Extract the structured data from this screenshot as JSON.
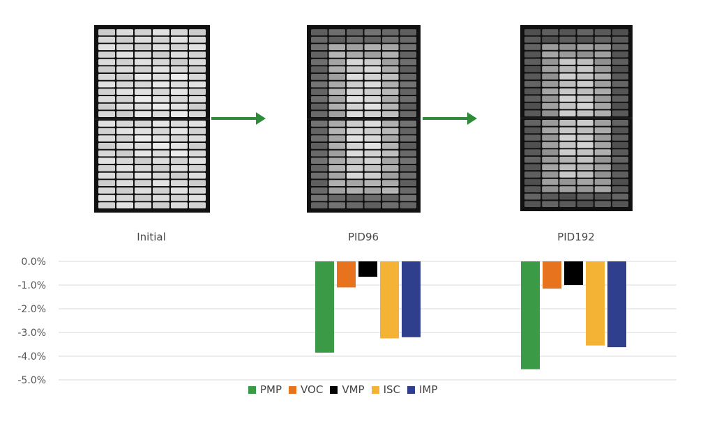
{
  "panels": [
    {
      "label": "Initial",
      "degradation": 0
    },
    {
      "label": "PID96",
      "degradation": 1
    },
    {
      "label": "PID192",
      "degradation": 2
    }
  ],
  "chart_data": {
    "type": "bar",
    "categories": [
      "Initial",
      "PID96",
      "PID192"
    ],
    "series": [
      {
        "name": "PMP",
        "color": "#3a9a46",
        "values": [
          0.0,
          -3.85,
          -4.55
        ]
      },
      {
        "name": "VOC",
        "color": "#e8731f",
        "values": [
          0.0,
          -1.1,
          -1.15
        ]
      },
      {
        "name": "VMP",
        "color": "#000000",
        "values": [
          0.0,
          -0.65,
          -1.0
        ]
      },
      {
        "name": "ISC",
        "color": "#f5b335",
        "values": [
          0.0,
          -3.25,
          -3.55
        ]
      },
      {
        "name": "IMP",
        "color": "#2f3f8e",
        "values": [
          0.0,
          -3.2,
          -3.62
        ]
      }
    ],
    "yticks": [
      "0.0%",
      "-1.0%",
      "-2.0%",
      "-3.0%",
      "-4.0%",
      "-5.0%"
    ],
    "ylim": [
      -5,
      0
    ],
    "grid": true,
    "legend": "bottom"
  }
}
